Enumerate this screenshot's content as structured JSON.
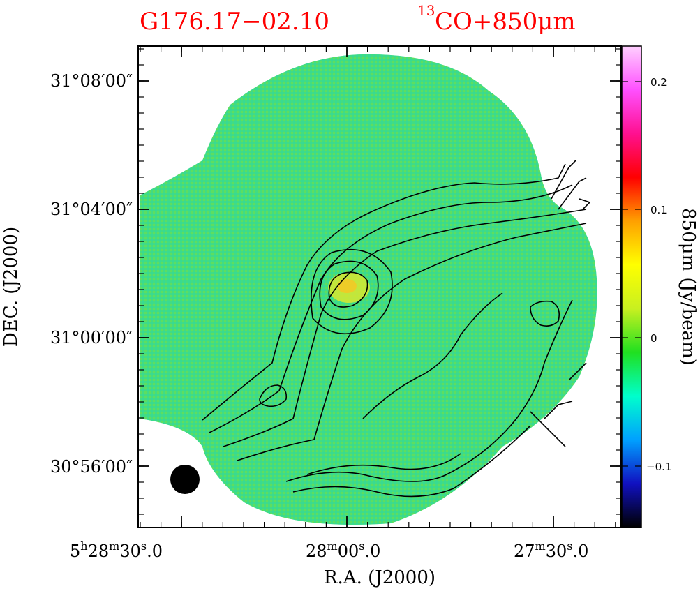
{
  "title": {
    "source": "G176.17−02.10",
    "tracer_prefix": "13",
    "tracer": "CO+850μm"
  },
  "axes": {
    "xlabel": "R.A. (J2000)",
    "ylabel": "DEC. (J2000)",
    "x_ticks": [
      {
        "h": "5",
        "m": "28",
        "s": "30",
        "frac": ".0"
      },
      {
        "h": "",
        "m": "28",
        "s": "00",
        "frac": ".0"
      },
      {
        "h": "",
        "m": "27",
        "s": "30",
        "frac": ".0"
      }
    ],
    "y_ticks": [
      "31°08′00″",
      "31°04′00″",
      "31°00′00″",
      "30°56′00″"
    ]
  },
  "colorbar": {
    "label": "850μm (Jy/beam)",
    "ticks": [
      "0.2",
      "0.1",
      "0",
      "−0.1"
    ],
    "colors": [
      "#000000",
      "#1010c0",
      "#00a0ff",
      "#00ffcc",
      "#20e020",
      "#c8f020",
      "#ffff00",
      "#ffa000",
      "#ff0000",
      "#ff1090",
      "#ff50ff",
      "#ffd0ff"
    ]
  },
  "map": {
    "background_color": "#44dd88",
    "beam_color": "#000000"
  }
}
